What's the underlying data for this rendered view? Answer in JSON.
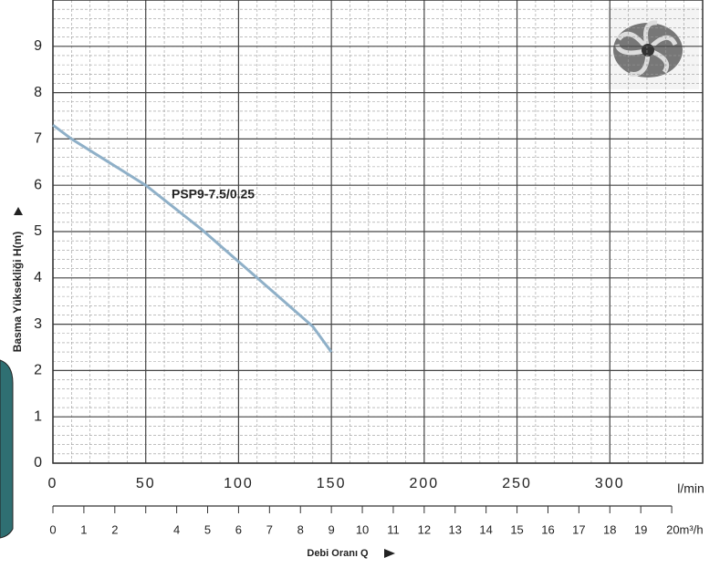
{
  "chart_data": {
    "type": "line",
    "series": [
      {
        "name": "PSP9-7.5/0.25",
        "color": "#8fb0c8",
        "label_color": "#1a8a82",
        "x": [
          0,
          10,
          30,
          50,
          80,
          110,
          140,
          150
        ],
        "values": [
          7.3,
          7.0,
          6.5,
          6.0,
          5.05,
          4.0,
          2.95,
          2.4
        ]
      }
    ],
    "xlim": [
      0,
      350
    ],
    "xticks": [
      0,
      50,
      100,
      150,
      200,
      250,
      300
    ],
    "ylim": [
      0,
      10
    ],
    "yticks": [
      0,
      1,
      2,
      3,
      4,
      5,
      6,
      7,
      8,
      9
    ],
    "x_unit": "l/min",
    "ylabel": "Basma Yüksekliği H(m)",
    "x2label": "Debi Oranı Q",
    "x2lim": [
      0,
      21
    ],
    "x2ticks": [
      0,
      1,
      2,
      {
        "value": 3,
        "label": null
      },
      4,
      5,
      6,
      7,
      8,
      9,
      10,
      11,
      12,
      13,
      14,
      15,
      16,
      17,
      18,
      19,
      {
        "value": 20,
        "label": "20m³/h"
      }
    ],
    "grid": true,
    "minor_grid": true
  }
}
